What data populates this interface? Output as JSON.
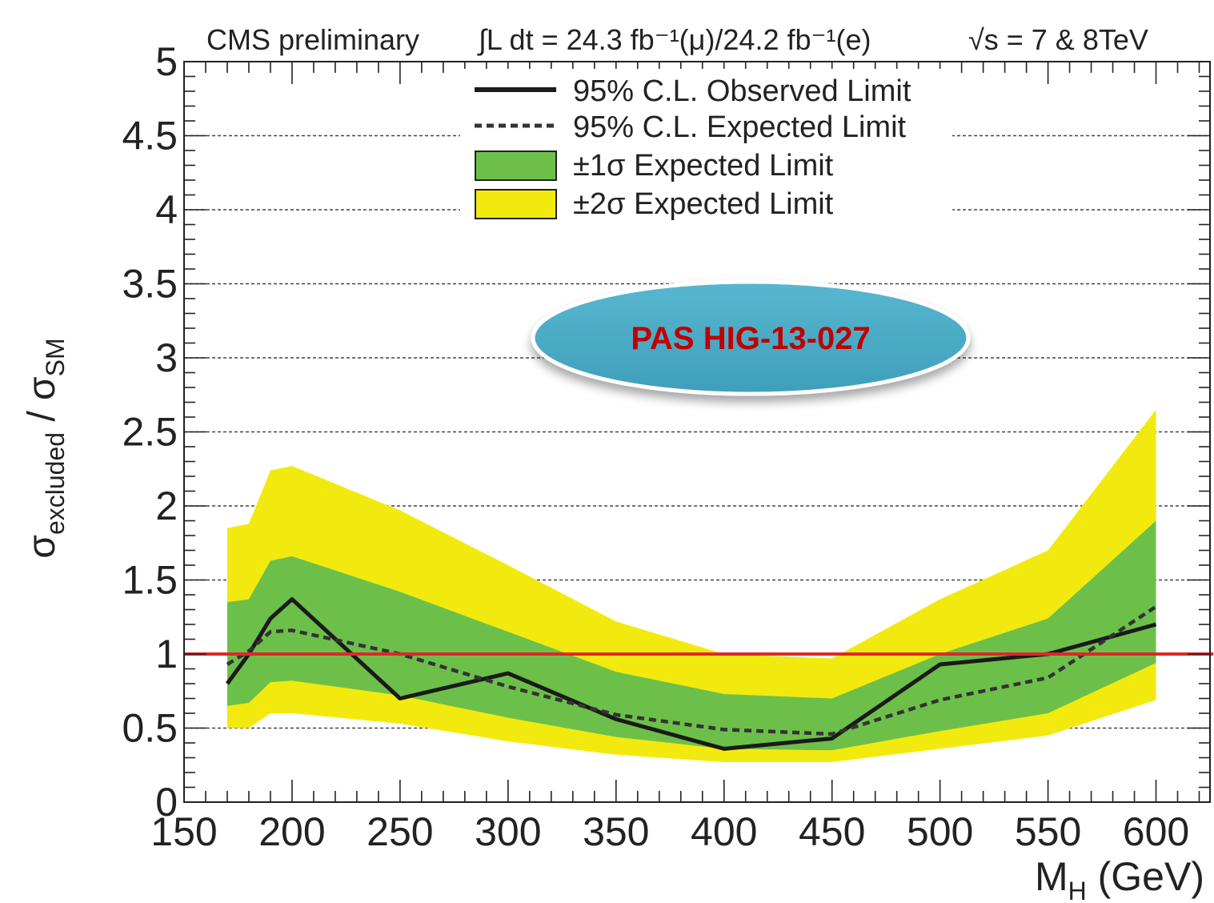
{
  "chart_data": {
    "type": "line",
    "header": {
      "experiment": "CMS preliminary",
      "lumi": "∫L dt = 24.3 fb⁻¹(μ)/24.2 fb⁻¹(e)",
      "energy": "√s = 7 & 8TeV"
    },
    "xlabel": "M_H (GeV)",
    "ylabel": "σ_excluded / σ_SM",
    "xlim": [
      150,
      625
    ],
    "ylim": [
      0,
      5
    ],
    "xticks": [
      150,
      200,
      250,
      300,
      350,
      400,
      450,
      500,
      550,
      600
    ],
    "yticks": [
      0,
      0.5,
      1,
      1.5,
      2,
      2.5,
      3,
      3.5,
      4,
      4.5,
      5
    ],
    "x": [
      170,
      180,
      190,
      200,
      250,
      300,
      350,
      400,
      450,
      500,
      550,
      600
    ],
    "series": [
      {
        "name": "95% C.L. Observed Limit",
        "style": "solid",
        "values": [
          0.8,
          1.0,
          1.24,
          1.37,
          0.7,
          0.87,
          0.56,
          0.36,
          0.43,
          0.93,
          1.0,
          1.2
        ]
      },
      {
        "name": "95% C.L. Expected Limit",
        "style": "dashed",
        "values": [
          0.93,
          1.02,
          1.15,
          1.16,
          1.0,
          0.78,
          0.59,
          0.49,
          0.46,
          0.69,
          0.84,
          1.32
        ]
      }
    ],
    "bands": [
      {
        "name": "±2σ Expected Limit",
        "color": "#f2ea0e",
        "upper": [
          1.85,
          1.88,
          2.24,
          2.27,
          1.97,
          1.6,
          1.22,
          1.0,
          0.97,
          1.37,
          1.7,
          2.65
        ],
        "lower": [
          0.5,
          0.5,
          0.6,
          0.6,
          0.53,
          0.41,
          0.32,
          0.27,
          0.27,
          0.36,
          0.45,
          0.69
        ]
      },
      {
        "name": "±1σ Expected Limit",
        "color": "#6cc04a",
        "upper": [
          1.35,
          1.37,
          1.63,
          1.66,
          1.42,
          1.15,
          0.88,
          0.73,
          0.7,
          1.0,
          1.24,
          1.9
        ],
        "lower": [
          0.65,
          0.67,
          0.81,
          0.82,
          0.72,
          0.57,
          0.44,
          0.36,
          0.35,
          0.48,
          0.6,
          0.94
        ]
      }
    ],
    "reference_line": {
      "y": 1,
      "color": "#e0262b"
    },
    "grid": "horizontal dashed",
    "legend_placement": "top-center",
    "annotation": "PAS HIG-13-027",
    "colors": {
      "observed": "#1a1a1a",
      "expected": "#333333",
      "sigma1": "#6cc04a",
      "sigma2": "#f2ea0e",
      "badge_fill": "#4bacc6",
      "badge_text": "#c00000",
      "reference": "#e0262b"
    }
  }
}
